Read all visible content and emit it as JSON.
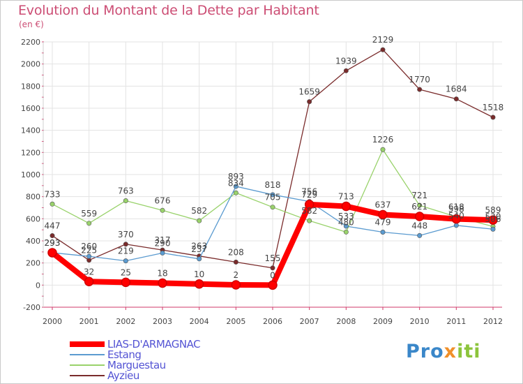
{
  "title": "Evolution du Montant de la Dette par Habitant",
  "unit": "(en €)",
  "watermark": {
    "part1": "Pro",
    "part2": "x",
    "part3": "iti"
  },
  "chart_data": {
    "type": "line",
    "x": [
      "2000",
      "2001",
      "2002",
      "2003",
      "2004",
      "2005",
      "2006",
      "2007",
      "2008",
      "2009",
      "2010",
      "2011",
      "2012"
    ],
    "ylim": [
      -200,
      2200
    ],
    "yticks": [
      -200,
      0,
      200,
      400,
      600,
      800,
      1000,
      1200,
      1400,
      1600,
      1800,
      2000,
      2200
    ],
    "grid": true,
    "legend_position": "bottom-left",
    "series": [
      {
        "name": "LIAS-D'ARMAGNAC",
        "color": "#ff0000",
        "values": [
          293,
          32,
          25,
          18,
          10,
          2,
          0,
          729,
          713,
          637,
          621,
          598,
          589
        ]
      },
      {
        "name": "Estang",
        "color": "#5b9bd0",
        "values": [
          293,
          260,
          219,
          290,
          237,
          893,
          818,
          756,
          533,
          479,
          448,
          540,
          506
        ]
      },
      {
        "name": "Marguestau",
        "color": "#99d26b",
        "values": [
          733,
          559,
          763,
          676,
          582,
          834,
          705,
          582,
          480,
          1226,
          721,
          618,
          530
        ]
      },
      {
        "name": "Ayzieu",
        "color": "#7a2b2b",
        "values": [
          447,
          225,
          370,
          317,
          263,
          208,
          155,
          1659,
          1939,
          2129,
          1770,
          1684,
          1518
        ]
      }
    ]
  }
}
